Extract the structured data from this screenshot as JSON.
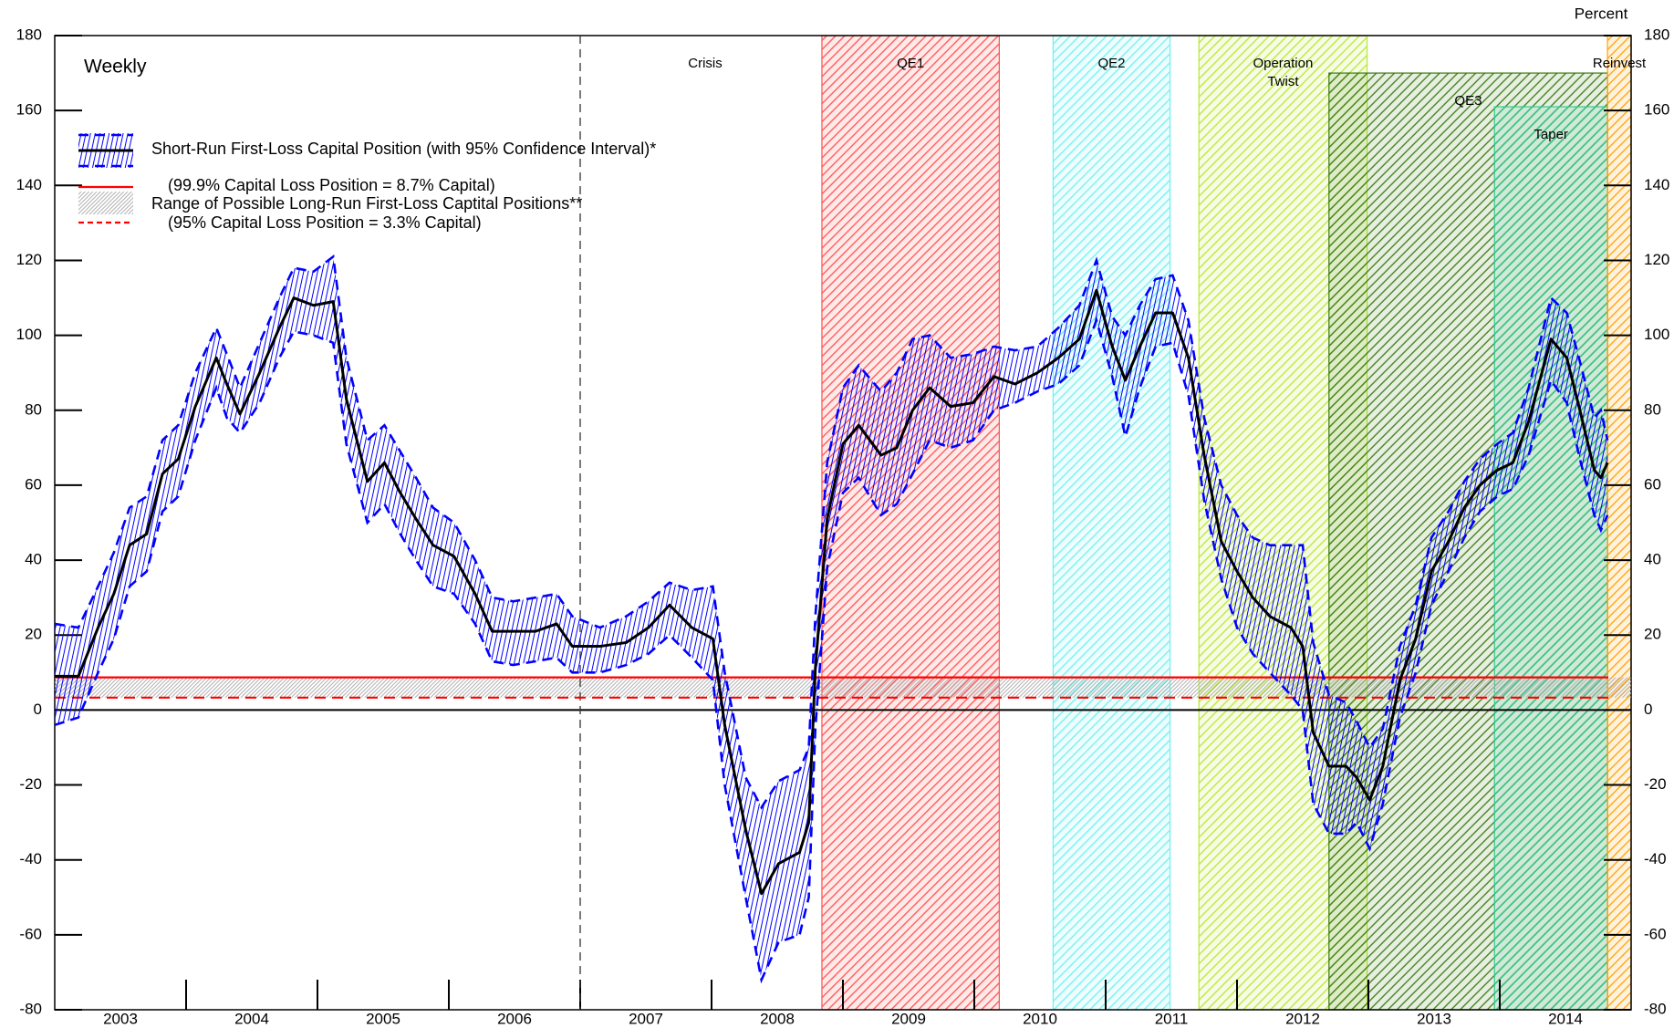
{
  "chart_data": {
    "type": "line",
    "title": "Weekly",
    "unit_label": "Percent",
    "xlim": [
      2003,
      2015
    ],
    "xticks": [
      2004,
      2005,
      2006,
      2007,
      2008,
      2009,
      2010,
      2011,
      2012,
      2013,
      2014
    ],
    "xlabels": [
      {
        "value": 2003.5,
        "label": "2003"
      },
      {
        "value": 2004.5,
        "label": "2004"
      },
      {
        "value": 2005.5,
        "label": "2005"
      },
      {
        "value": 2006.5,
        "label": "2006"
      },
      {
        "value": 2007.5,
        "label": "2007"
      },
      {
        "value": 2008.5,
        "label": "2008"
      },
      {
        "value": 2009.5,
        "label": "2009"
      },
      {
        "value": 2010.5,
        "label": "2010"
      },
      {
        "value": 2011.5,
        "label": "2011"
      },
      {
        "value": 2012.5,
        "label": "2012"
      },
      {
        "value": 2013.5,
        "label": "2013"
      },
      {
        "value": 2014.5,
        "label": "2014"
      }
    ],
    "ylim": [
      -80,
      180
    ],
    "yticks": [
      -80,
      -60,
      -40,
      -20,
      0,
      20,
      40,
      60,
      80,
      100,
      120,
      140,
      160,
      180
    ],
    "y2lim": [
      -80,
      180
    ],
    "y2ticks": [
      -80,
      -60,
      -40,
      -20,
      0,
      20,
      40,
      60,
      80,
      100,
      120,
      140,
      160,
      180
    ],
    "x": [
      2003.0,
      2003.18,
      2003.33,
      2003.45,
      2003.57,
      2003.7,
      2003.82,
      2003.94,
      2004.07,
      2004.23,
      2004.31,
      2004.41,
      2004.56,
      2004.71,
      2004.82,
      2004.97,
      2005.12,
      2005.22,
      2005.38,
      2005.51,
      2005.63,
      2005.75,
      2005.88,
      2006.04,
      2006.2,
      2006.33,
      2006.49,
      2006.66,
      2006.82,
      2006.94,
      2007.15,
      2007.35,
      2007.52,
      2007.68,
      2007.85,
      2008.01,
      2008.1,
      2008.26,
      2008.38,
      2008.51,
      2008.67,
      2008.74,
      2008.79,
      2008.88,
      2009.0,
      2009.12,
      2009.29,
      2009.41,
      2009.53,
      2009.66,
      2009.82,
      2009.99,
      2010.15,
      2010.31,
      2010.48,
      2010.64,
      2010.8,
      2010.93,
      2011.05,
      2011.15,
      2011.26,
      2011.38,
      2011.51,
      2011.63,
      2011.75,
      2011.88,
      2012.0,
      2012.12,
      2012.25,
      2012.41,
      2012.5,
      2012.58,
      2012.7,
      2012.83,
      2012.91,
      2013.01,
      2013.11,
      2013.24,
      2013.36,
      2013.48,
      2013.61,
      2013.73,
      2013.85,
      2013.98,
      2014.1,
      2014.22,
      2014.39,
      2014.51,
      2014.61,
      2014.72,
      2014.77,
      2014.82
    ],
    "series": [
      {
        "name": "Short-Run First-Loss Capital Position (with 95% Confidence Interval)*",
        "color": "#000000",
        "band_color": "#0000ff",
        "values": [
          9,
          9,
          22,
          31,
          44,
          47,
          63,
          67,
          81,
          94,
          87,
          79,
          90,
          102,
          110,
          108,
          109,
          83,
          61,
          66,
          58,
          51,
          44,
          41,
          31,
          21,
          21,
          21,
          23,
          17,
          17,
          18,
          22,
          28,
          22,
          19,
          -4,
          -32,
          -49,
          -41,
          -38,
          -30,
          11,
          51,
          71,
          76,
          68,
          70,
          80,
          86,
          81,
          82,
          89,
          87,
          90,
          94,
          99,
          112,
          97,
          88,
          97,
          106,
          106,
          94,
          68,
          45,
          37,
          30,
          25,
          22,
          17,
          -6,
          -15,
          -15,
          -18,
          -24,
          -15,
          8,
          19,
          37,
          45,
          54,
          60,
          64,
          66,
          77,
          99,
          94,
          80,
          64,
          62,
          66
        ],
        "upper": [
          23,
          22,
          33,
          42,
          54,
          57,
          72,
          76,
          90,
          102,
          95,
          86,
          98,
          110,
          118,
          117,
          121,
          94,
          72,
          76,
          69,
          62,
          54,
          50,
          40,
          30,
          29,
          30,
          31,
          25,
          22,
          25,
          29,
          34,
          32,
          33,
          10,
          -18,
          -26,
          -19,
          -16,
          -10,
          25,
          66,
          86,
          92,
          85,
          90,
          99,
          100,
          94,
          95,
          97,
          96,
          97,
          102,
          108,
          120,
          105,
          100,
          108,
          115,
          116,
          104,
          78,
          60,
          52,
          46,
          44,
          44,
          44,
          18,
          4,
          2,
          -3,
          -10,
          -5,
          17,
          28,
          46,
          53,
          61,
          67,
          71,
          74,
          86,
          110,
          106,
          93,
          78,
          80,
          72
        ],
        "lower": [
          -4,
          -2,
          10,
          19,
          33,
          37,
          53,
          57,
          72,
          86,
          78,
          74,
          82,
          94,
          101,
          100,
          98,
          71,
          50,
          55,
          47,
          40,
          33,
          31,
          23,
          13,
          12,
          13,
          14,
          10,
          10,
          12,
          15,
          20,
          14,
          8,
          -20,
          -50,
          -72,
          -62,
          -60,
          -50,
          -5,
          38,
          58,
          62,
          52,
          55,
          63,
          72,
          70,
          72,
          80,
          82,
          85,
          87,
          92,
          104,
          89,
          73,
          86,
          97,
          98,
          84,
          56,
          35,
          22,
          15,
          10,
          4,
          0,
          -25,
          -33,
          -33,
          -30,
          -37,
          -25,
          -2,
          10,
          28,
          37,
          46,
          53,
          57,
          59,
          68,
          88,
          82,
          67,
          52,
          48,
          52
        ]
      }
    ],
    "reference_lines": [
      {
        "value": 8.7,
        "color": "#ff0000",
        "style": "solid",
        "label": "(99.9% Capital Loss Position = 8.7% Capital)"
      },
      {
        "value": 3.3,
        "color": "#ff0000",
        "style": "dashed",
        "label": "(95% Capital Loss Position = 3.3% Capital)"
      }
    ],
    "range_band": {
      "label": "Range of Possible Long-Run First-Loss Captital Positions**",
      "color": "#b0b0b0"
    },
    "crisis": {
      "x": 2007.0,
      "label": "Crisis"
    },
    "regions": [
      {
        "label": "QE1",
        "start": 2008.84,
        "end": 2010.19,
        "top": 180,
        "color": "#ff5050"
      },
      {
        "label": "QE2",
        "start": 2010.6,
        "end": 2011.49,
        "top": 180,
        "color": "#70f0f0"
      },
      {
        "label": [
          "Operation",
          "Twist"
        ],
        "start": 2011.71,
        "end": 2012.99,
        "top": 180,
        "color": "#b8e830"
      },
      {
        "label": "QE3",
        "start": 2012.7,
        "end": 2014.82,
        "top": 170,
        "color": "#3a7a10"
      },
      {
        "label": "Taper",
        "start": 2013.96,
        "end": 2014.82,
        "top": 161,
        "color": "#30c890"
      },
      {
        "label": "Reinvest",
        "start": 2014.82,
        "end": 2015.0,
        "top": 180,
        "color": "#ffa000"
      }
    ]
  }
}
